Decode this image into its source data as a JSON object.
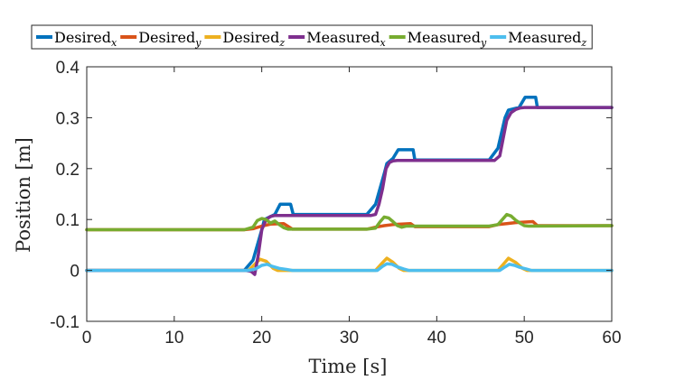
{
  "chart_data": {
    "type": "line",
    "xlabel": "Time [s]",
    "ylabel": "Position [m]",
    "xlim": [
      0,
      60
    ],
    "ylim": [
      -0.1,
      0.4
    ],
    "xticks": [
      0,
      10,
      20,
      30,
      40,
      50,
      60
    ],
    "yticks": [
      -0.1,
      0,
      0.1,
      0.2,
      0.3,
      0.4
    ],
    "xtick_labels": [
      "0",
      "10",
      "20",
      "30",
      "40",
      "50",
      "60"
    ],
    "ytick_labels": [
      "-0.1",
      "0",
      "0.1",
      "0.2",
      "0.3",
      "0.4"
    ],
    "grid": false,
    "legend_position": "top",
    "series": [
      {
        "name": "Desired",
        "subscript": "x",
        "color": "#0072BD",
        "x": [
          0,
          18,
          19,
          20,
          20.3,
          21.5,
          22.1,
          23.3,
          23.6,
          32,
          33,
          34,
          34.3,
          35,
          35.6,
          37.3,
          37.5,
          46,
          47,
          47.8,
          48.2,
          49.4,
          50.1,
          51.3,
          51.5,
          60
        ],
        "y": [
          0,
          0,
          0.02,
          0.08,
          0.1,
          0.11,
          0.13,
          0.13,
          0.11,
          0.11,
          0.13,
          0.19,
          0.21,
          0.22,
          0.237,
          0.237,
          0.217,
          0.217,
          0.24,
          0.3,
          0.315,
          0.32,
          0.34,
          0.34,
          0.32,
          0.32
        ]
      },
      {
        "name": "Desired",
        "subscript": "y",
        "color": "#D95319",
        "x": [
          0,
          18,
          19,
          20,
          21,
          22.5,
          23.5,
          32,
          33,
          34,
          35,
          37,
          37.5,
          46,
          47,
          48,
          49,
          51,
          51.5,
          60
        ],
        "y": [
          0.08,
          0.08,
          0.082,
          0.087,
          0.091,
          0.092,
          0.081,
          0.081,
          0.085,
          0.088,
          0.09,
          0.092,
          0.086,
          0.086,
          0.09,
          0.092,
          0.094,
          0.096,
          0.088,
          0.088
        ]
      },
      {
        "name": "Desired",
        "subscript": "z",
        "color": "#EDB120",
        "x": [
          0,
          18.5,
          19.2,
          19.8,
          20.5,
          21.3,
          21.8,
          33,
          33.8,
          34.3,
          35,
          35.7,
          36.2,
          47,
          47.8,
          48.2,
          49,
          49.8,
          50.3,
          60
        ],
        "y": [
          0,
          0,
          0.012,
          0.022,
          0.018,
          0.004,
          0,
          0,
          0.015,
          0.024,
          0.016,
          0.004,
          0,
          0,
          0.016,
          0.024,
          0.016,
          0.004,
          0,
          0
        ]
      },
      {
        "name": "Measured",
        "subscript": "x",
        "color": "#7E2F8E",
        "x": [
          0,
          18.2,
          18.8,
          19.2,
          19.6,
          20,
          20.5,
          21,
          21.5,
          22,
          32.5,
          33,
          33.4,
          33.8,
          34.2,
          34.6,
          35,
          35.5,
          36,
          46.6,
          47.2,
          47.6,
          48,
          48.5,
          49,
          49.5,
          50,
          60
        ],
        "y": [
          0,
          0,
          -0.002,
          -0.008,
          0.03,
          0.08,
          0.1,
          0.106,
          0.108,
          0.108,
          0.108,
          0.11,
          0.13,
          0.16,
          0.2,
          0.212,
          0.215,
          0.216,
          0.216,
          0.216,
          0.225,
          0.26,
          0.295,
          0.31,
          0.316,
          0.319,
          0.32,
          0.32
        ]
      },
      {
        "name": "Measured",
        "subscript": "y",
        "color": "#77AC30",
        "x": [
          0,
          18,
          19,
          19.5,
          20,
          20.5,
          21,
          21.5,
          22,
          22.5,
          23,
          23.5,
          32,
          33,
          33.5,
          34,
          34.5,
          35,
          35.5,
          36,
          36.5,
          46,
          47,
          47.5,
          48,
          48.5,
          49,
          49.5,
          50,
          50.5,
          60
        ],
        "y": [
          0.08,
          0.08,
          0.085,
          0.098,
          0.102,
          0.1,
          0.093,
          0.097,
          0.09,
          0.084,
          0.081,
          0.081,
          0.081,
          0.083,
          0.095,
          0.105,
          0.103,
          0.096,
          0.088,
          0.085,
          0.087,
          0.087,
          0.09,
          0.1,
          0.11,
          0.107,
          0.099,
          0.093,
          0.088,
          0.087,
          0.088
        ]
      },
      {
        "name": "Measured",
        "subscript": "z",
        "color": "#4DBEEE",
        "x": [
          0,
          18.5,
          19.3,
          20,
          20.6,
          21.2,
          22,
          22.8,
          23.5,
          33.2,
          33.8,
          34.3,
          34.9,
          35.5,
          36.2,
          36.8,
          47.2,
          47.8,
          48.3,
          48.9,
          49.5,
          50.2,
          50.8,
          60
        ],
        "y": [
          0,
          0,
          0.003,
          0.01,
          0.012,
          0.008,
          0.004,
          0.002,
          0,
          0,
          0.008,
          0.013,
          0.012,
          0.007,
          0.003,
          0,
          0,
          0.007,
          0.012,
          0.01,
          0.006,
          0.003,
          0,
          0
        ]
      }
    ]
  }
}
